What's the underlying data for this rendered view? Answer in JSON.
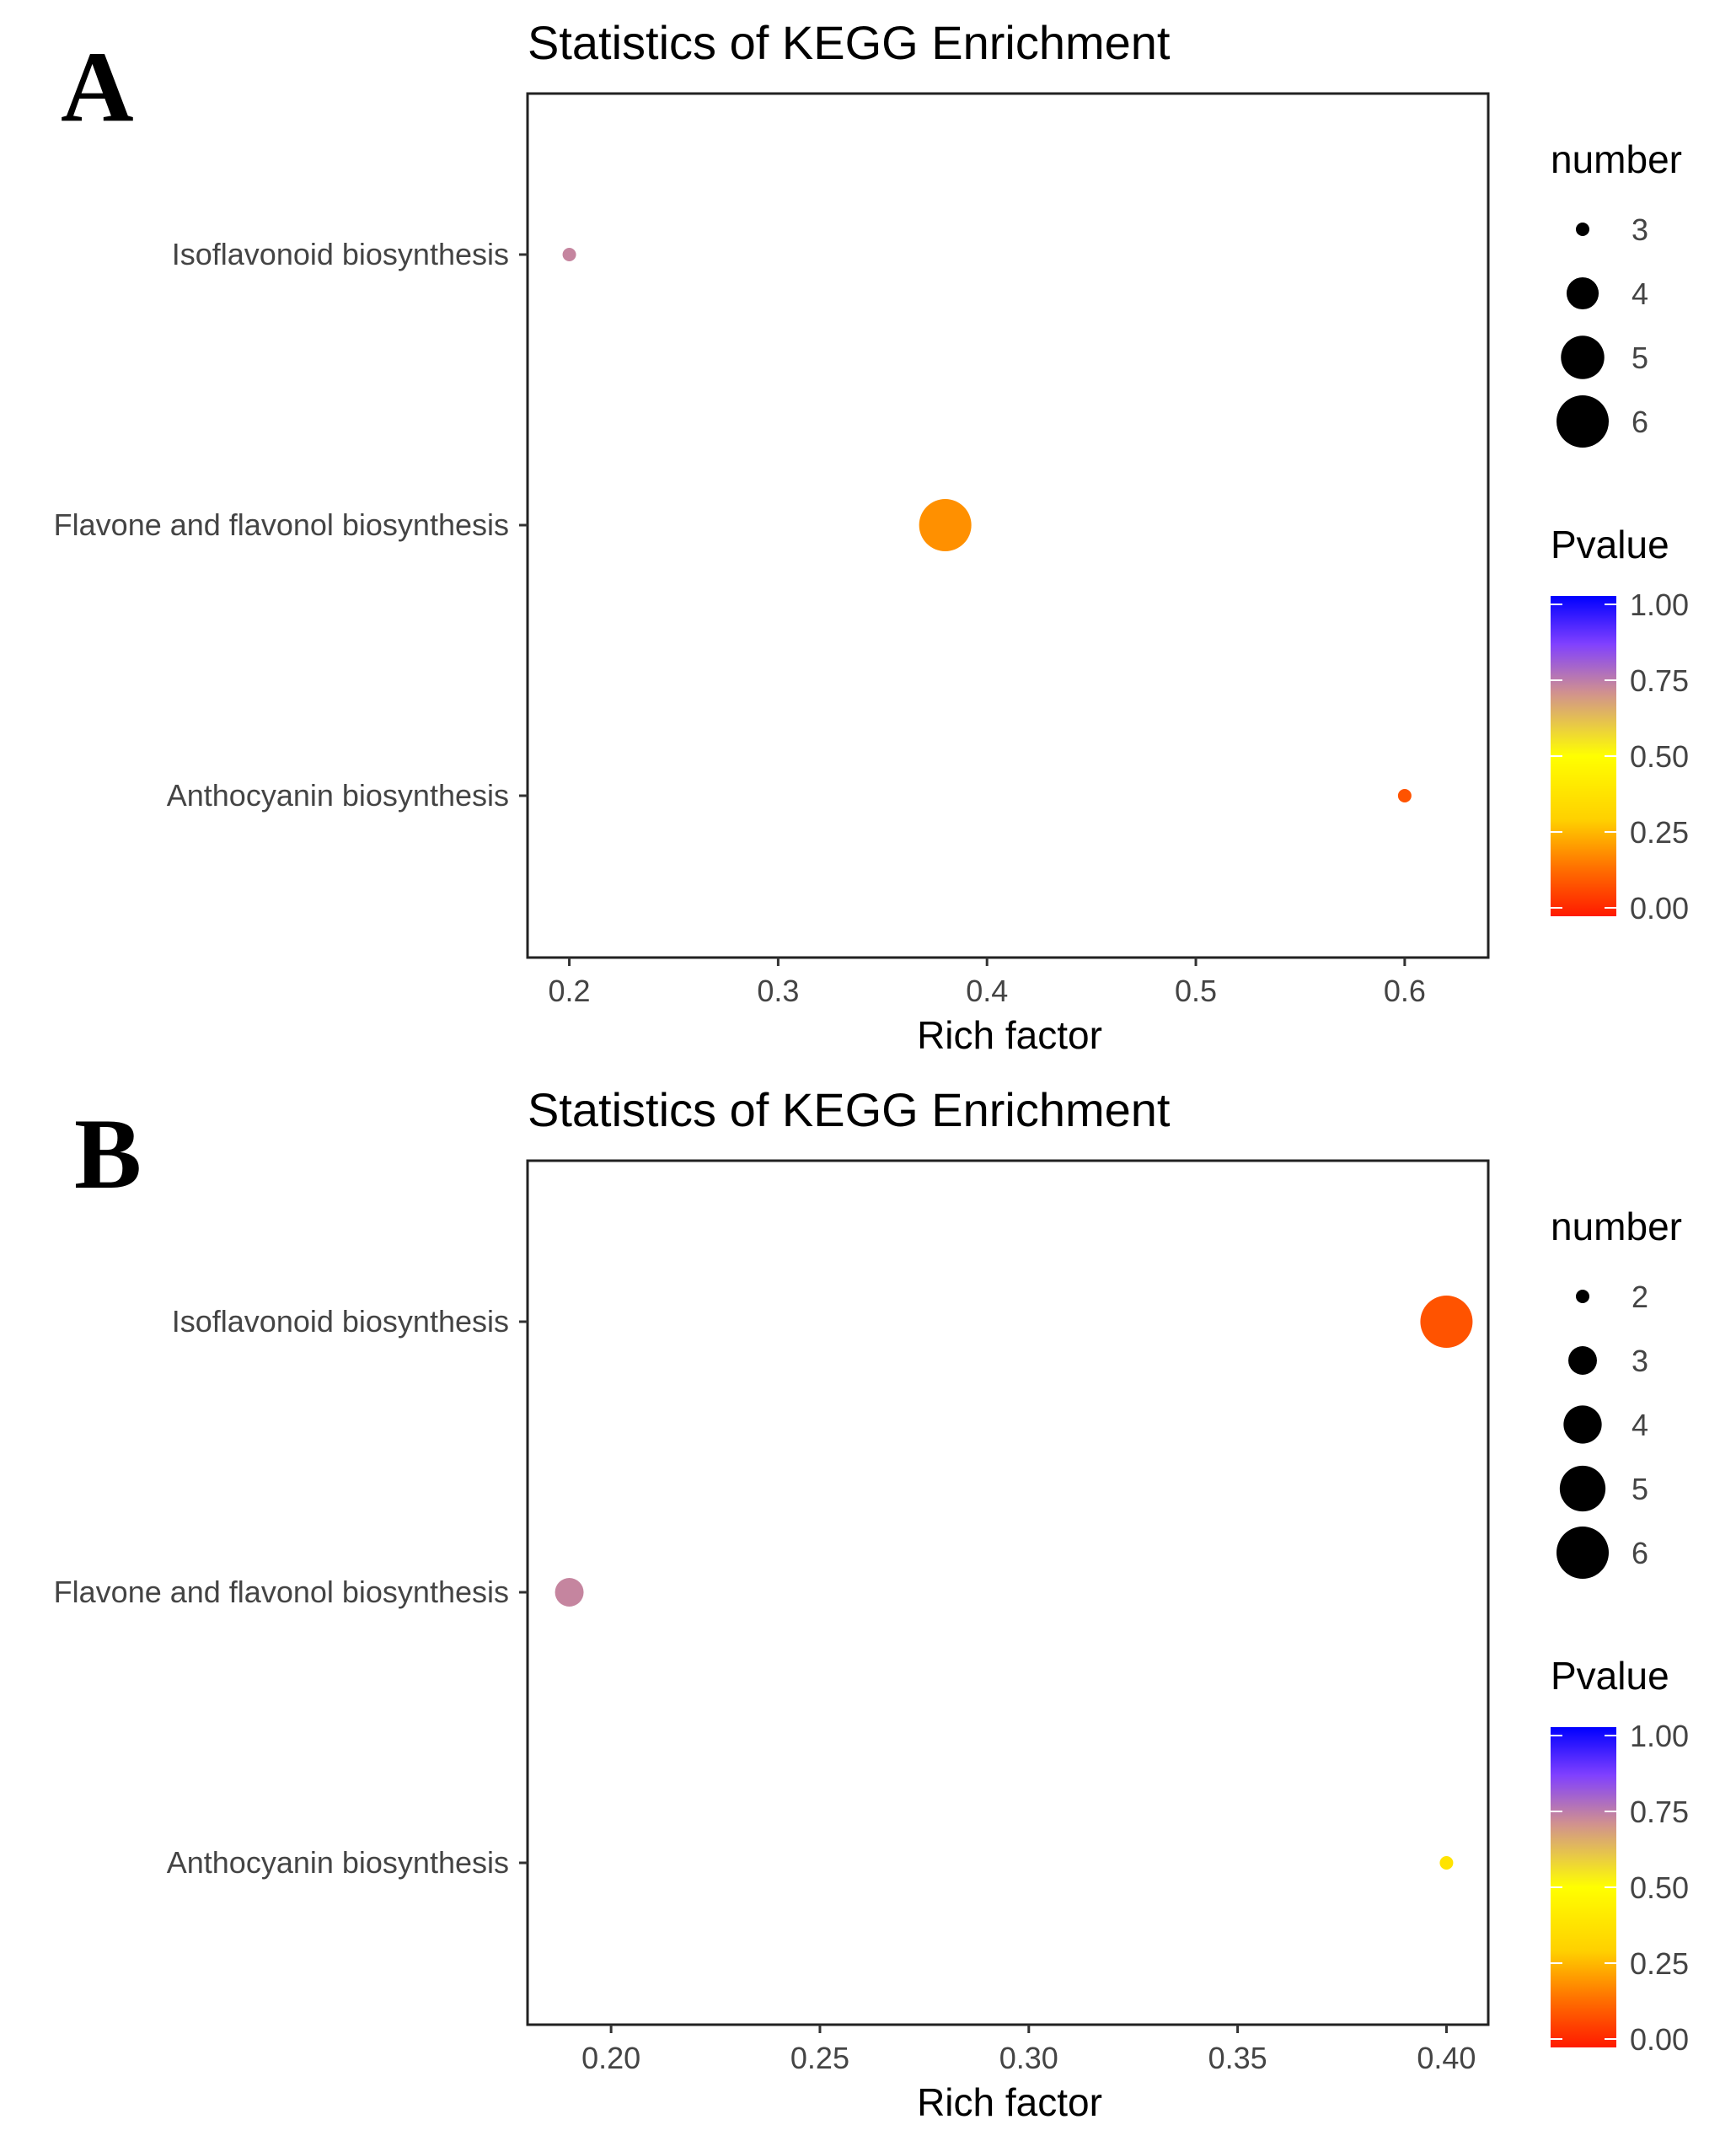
{
  "chart_data": [
    {
      "panel_label": "A",
      "type": "scatter",
      "title": "Statistics of KEGG Enrichment",
      "xlabel": "Rich factor",
      "ylabel": "",
      "xlim": [
        0.18,
        0.64
      ],
      "xticks": [
        0.2,
        0.3,
        0.4,
        0.5,
        0.6
      ],
      "xtick_labels": [
        "0.2",
        "0.3",
        "0.4",
        "0.5",
        "0.6"
      ],
      "categories": [
        "Isoflavonoid biosynthesis",
        "Flavone and flavonol biosynthesis",
        "Anthocyanin biosynthesis"
      ],
      "points": [
        {
          "term": "Isoflavonoid biosynthesis",
          "rich_factor": 0.2,
          "number": 3,
          "pvalue": 0.72
        },
        {
          "term": "Flavone and flavonol biosynthesis",
          "rich_factor": 0.38,
          "number": 6,
          "pvalue": 0.2
        },
        {
          "term": "Anthocyanin biosynthesis",
          "rich_factor": 0.6,
          "number": 3,
          "pvalue": 0.1
        }
      ],
      "size_legend": {
        "title": "number",
        "values": [
          3,
          4,
          5,
          6
        ],
        "labels": [
          "3",
          "4",
          "5",
          "6"
        ]
      },
      "color_legend": {
        "title": "Pvalue",
        "ticks": [
          1.0,
          0.75,
          0.5,
          0.25,
          0.0
        ],
        "tick_labels": [
          "1.00",
          "0.75",
          "0.50",
          "0.25",
          "0.00"
        ]
      },
      "grid": false
    },
    {
      "panel_label": "B",
      "type": "scatter",
      "title": "Statistics of KEGG Enrichment",
      "xlabel": "Rich factor",
      "ylabel": "",
      "xlim": [
        0.18,
        0.41
      ],
      "xticks": [
        0.2,
        0.25,
        0.3,
        0.35,
        0.4
      ],
      "xtick_labels": [
        "0.20",
        "0.25",
        "0.30",
        "0.35",
        "0.40"
      ],
      "categories": [
        "Isoflavonoid biosynthesis",
        "Flavone and flavonol biosynthesis",
        "Anthocyanin biosynthesis"
      ],
      "points": [
        {
          "term": "Isoflavonoid biosynthesis",
          "rich_factor": 0.4,
          "number": 6,
          "pvalue": 0.1
        },
        {
          "term": "Flavone and flavonol biosynthesis",
          "rich_factor": 0.19,
          "number": 3,
          "pvalue": 0.72
        },
        {
          "term": "Anthocyanin biosynthesis",
          "rich_factor": 0.4,
          "number": 2,
          "pvalue": 0.38
        }
      ],
      "size_legend": {
        "title": "number",
        "values": [
          2,
          3,
          4,
          5,
          6
        ],
        "labels": [
          "2",
          "3",
          "4",
          "5",
          "6"
        ]
      },
      "color_legend": {
        "title": "Pvalue",
        "ticks": [
          1.0,
          0.75,
          0.5,
          0.25,
          0.0
        ],
        "tick_labels": [
          "1.00",
          "0.75",
          "0.50",
          "0.25",
          "0.00"
        ]
      },
      "grid": false
    }
  ],
  "colors": {
    "pvalue_scale": [
      "#ff1a00",
      "#ff7000",
      "#ffd000",
      "#ffff00",
      "#d09090",
      "#8040ff",
      "#0000ff"
    ]
  }
}
